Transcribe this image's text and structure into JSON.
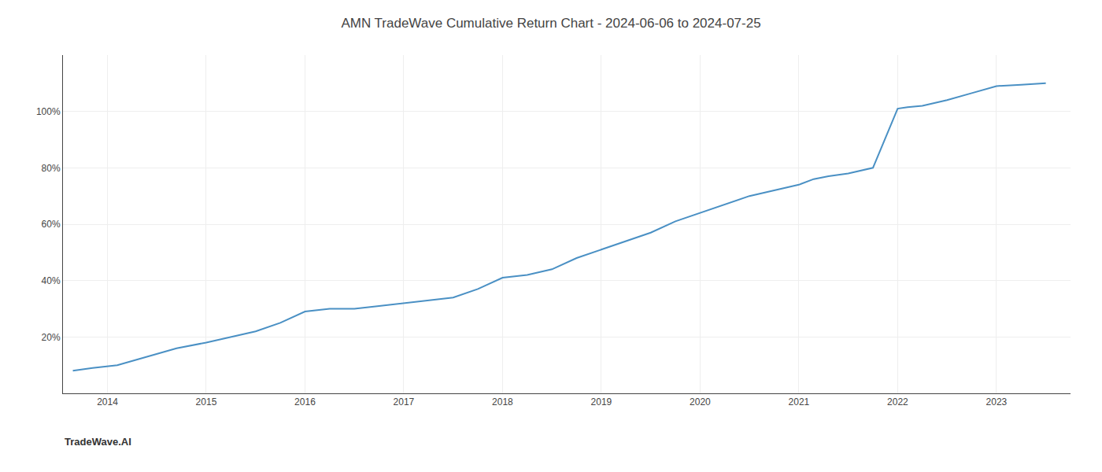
{
  "chart_data": {
    "type": "line",
    "title": "AMN TradeWave Cumulative Return Chart - 2024-06-06 to 2024-07-25",
    "annotations": [
      "TradeWave.AI"
    ],
    "color": "#4a90c4",
    "x": [
      2013.65,
      2013.85,
      2014.1,
      2014.4,
      2014.7,
      2015.0,
      2015.25,
      2015.5,
      2015.75,
      2016.0,
      2016.25,
      2016.5,
      2016.75,
      2017.0,
      2017.25,
      2017.5,
      2017.75,
      2018.0,
      2018.25,
      2018.5,
      2018.75,
      2019.0,
      2019.25,
      2019.5,
      2019.75,
      2020.0,
      2020.25,
      2020.5,
      2020.75,
      2021.0,
      2021.15,
      2021.3,
      2021.5,
      2021.75,
      2022.0,
      2022.1,
      2022.25,
      2022.5,
      2022.75,
      2023.0,
      2023.25,
      2023.5
    ],
    "values": [
      0.08,
      0.09,
      0.1,
      0.13,
      0.16,
      0.18,
      0.2,
      0.22,
      0.25,
      0.29,
      0.3,
      0.3,
      0.31,
      0.32,
      0.33,
      0.34,
      0.37,
      0.41,
      0.42,
      0.44,
      0.48,
      0.51,
      0.54,
      0.57,
      0.61,
      0.64,
      0.67,
      0.7,
      0.72,
      0.74,
      0.76,
      0.77,
      0.78,
      0.8,
      1.01,
      1.015,
      1.02,
      1.04,
      1.065,
      1.09,
      1.095,
      1.1
    ],
    "xlim": [
      2013.55,
      2023.75
    ],
    "xticks": [
      2014,
      2015,
      2016,
      2017,
      2018,
      2019,
      2020,
      2021,
      2022,
      2023
    ],
    "ylim": [
      0.0,
      1.2
    ],
    "yticks": [
      {
        "value": 0.2,
        "label": "20%"
      },
      {
        "value": 0.4,
        "label": "40%"
      },
      {
        "value": 0.6,
        "label": "60%"
      },
      {
        "value": 0.8,
        "label": "80%"
      },
      {
        "value": 1.0,
        "label": "100%"
      }
    ],
    "grid": true
  }
}
